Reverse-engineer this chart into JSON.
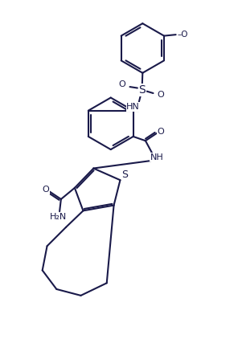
{
  "bg_color": "#ffffff",
  "line_color": "#1a1a4a",
  "line_width": 1.5,
  "fig_width": 2.96,
  "fig_height": 4.22,
  "dpi": 100,
  "xlim": [
    0,
    10
  ],
  "ylim": [
    0,
    14
  ]
}
